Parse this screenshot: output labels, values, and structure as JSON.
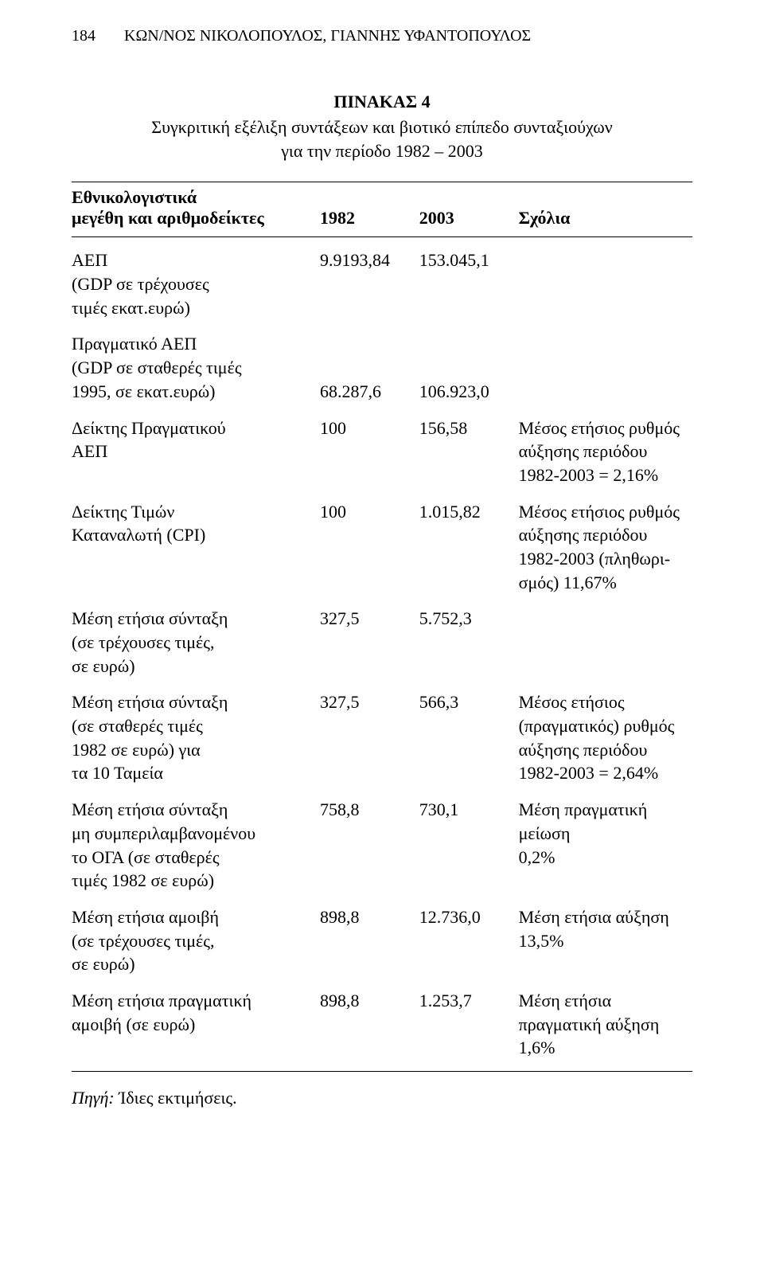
{
  "page_number": "184",
  "running_head": "ΚΩΝ/ΝΟΣ ΝΙΚΟΛΟΠΟΥΛΟΣ, ΓΙΑΝΝΗΣ ΥΦΑΝΤΟΠΟΥΛΟΣ",
  "table_label": "ΠΙΝΑΚΑΣ 4",
  "table_caption_line1": "Συγκριτική εξέλιξη συντάξεων και βιοτικό επίπεδο συνταξιούχων",
  "table_caption_line2": "για την περίοδο 1982 – 2003",
  "header": {
    "col1_line1": "Εθνικολογιστικά",
    "col1_line2": "μεγέθη και αριθμοδείκτες",
    "col2": "1982",
    "col3": "2003",
    "col4": "Σχόλια"
  },
  "rows": [
    {
      "label": "ΑΕΠ\n(GDP σε τρέχουσες\nτιμές εκατ.ευρώ)",
      "v1982": "9.9193,84",
      "v2003": "153.045,1",
      "comment": ""
    },
    {
      "label": "Πραγματικό ΑΕΠ\n(GDP σε σταθερές τιμές\n1995, σε εκατ.ευρώ)",
      "v1982": "68.287,6",
      "v2003": "106.923,0",
      "comment": "",
      "values_bottom": true
    },
    {
      "label": "Δείκτης Πραγματικού\nΑΕΠ",
      "v1982": "100",
      "v2003": "156,58",
      "comment": "Μέσος ετήσιος ρυθμός\nαύξησης περιόδου\n1982-2003 = 2,16%"
    },
    {
      "label": "Δείκτης Τιμών\nΚαταναλωτή (CPI)",
      "v1982": "100",
      "v2003": "1.015,82",
      "comment": "Μέσος ετήσιος ρυθμός\nαύξησης περιόδου\n1982-2003 (πληθωρι-\nσμός) 11,67%"
    },
    {
      "label": "Μέση ετήσια σύνταξη\n(σε τρέχουσες τιμές,\nσε ευρώ)",
      "v1982": "327,5",
      "v2003": "5.752,3",
      "comment": ""
    },
    {
      "label": "Μέση ετήσια σύνταξη\n(σε σταθερές τιμές\n1982 σε ευρώ) για\nτα 10 Ταμεία",
      "v1982": "327,5",
      "v2003": "566,3",
      "comment": "Μέσος ετήσιος\n(πραγματικός) ρυθμός\nαύξησης περιόδου\n1982-2003 = 2,64%"
    },
    {
      "label": "Μέση ετήσια σύνταξη\nμη συμπεριλαμβανομένου\nτο ΟΓΑ (σε σταθερές\nτιμές 1982 σε ευρώ)",
      "v1982": "758,8",
      "v2003": "730,1",
      "comment": "Μέση πραγματική\nμείωση\n0,2%"
    },
    {
      "label": "Μέση ετήσια αμοιβή\n(σε τρέχουσες τιμές,\nσε ευρώ)",
      "v1982": "898,8",
      "v2003": "12.736,0",
      "comment": "Μέση ετήσια αύξηση\n13,5%"
    },
    {
      "label": "Μέση ετήσια πραγματική\nαμοιβή (σε ευρώ)",
      "v1982": "898,8",
      "v2003": "1.253,7",
      "comment": "Μέση ετήσια\nπραγματική αύξηση\n1,6%"
    }
  ],
  "source_label": "Πηγή:",
  "source_text": " Ίδιες εκτιμήσεις.",
  "style": {
    "font_family": "Times New Roman",
    "text_color": "#000000",
    "background_color": "#ffffff",
    "rule_color": "#000000",
    "body_font_size_pt": 16,
    "column_widths_pct": [
      40,
      16,
      16,
      28
    ]
  }
}
